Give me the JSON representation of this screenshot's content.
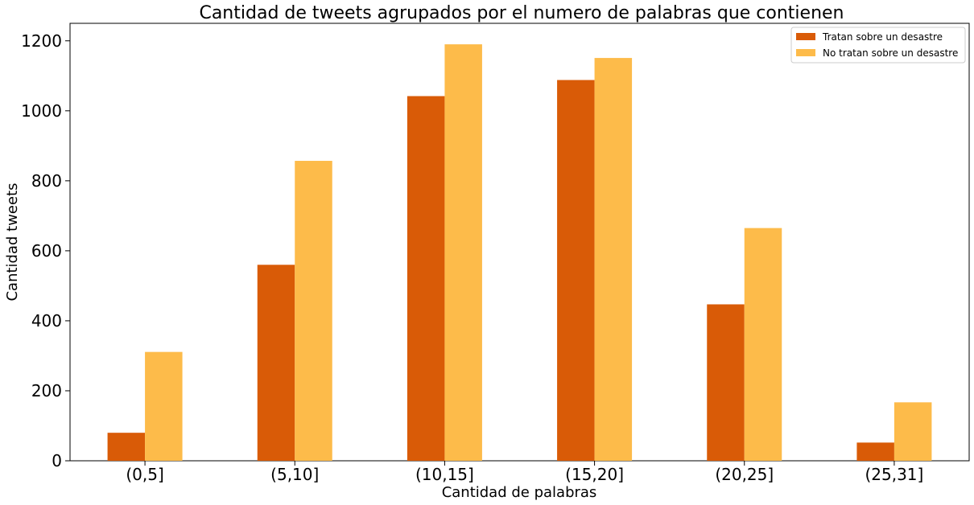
{
  "chart_data": {
    "type": "bar",
    "title": "Cantidad de tweets agrupados por el numero de palabras que contienen",
    "xlabel": "Cantidad de palabras",
    "ylabel": "Cantidad tweets",
    "categories": [
      "(0,5]",
      "(5,10]",
      "(10,15]",
      "(15,20]",
      "(20,25]",
      "(25,31]"
    ],
    "series": [
      {
        "name": "Tratan sobre un desastre",
        "color": "#d95b07",
        "values": [
          80,
          560,
          1042,
          1088,
          447,
          52
        ]
      },
      {
        "name": "No tratan sobre un desastre",
        "color": "#fdbb4a",
        "values": [
          311,
          857,
          1190,
          1151,
          665,
          167
        ]
      }
    ],
    "ylim": [
      0,
      1250
    ],
    "yticks": [
      0,
      200,
      400,
      600,
      800,
      1000,
      1200
    ],
    "grid": false,
    "legend_position": "top-right"
  }
}
